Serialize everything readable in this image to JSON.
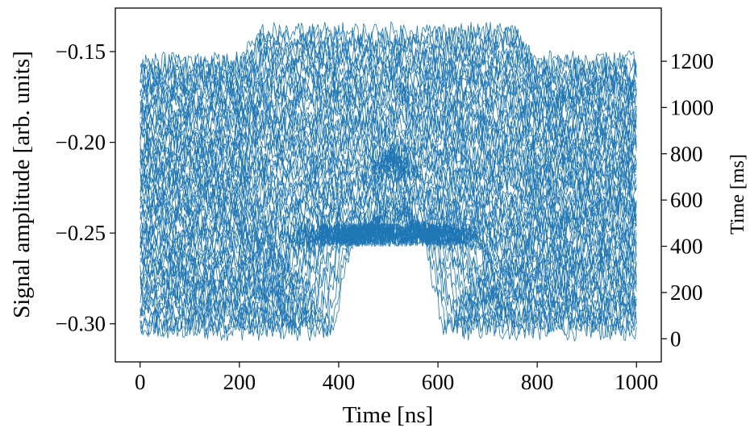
{
  "chart_data": {
    "type": "line",
    "title": "",
    "xlabel": "Time [ns]",
    "ylabel": "Signal amplitude [arb. units]",
    "y2label": "Time [ms]",
    "xlim": [
      -50,
      1050
    ],
    "ylim": [
      -0.321,
      -0.126
    ],
    "y2lim": [
      -100,
      1430
    ],
    "x_ticks": [
      0,
      200,
      400,
      600,
      800,
      1000
    ],
    "y_ticks": [
      -0.3,
      -0.25,
      -0.2,
      -0.15
    ],
    "y_tick_labels": [
      "−0.30",
      "−0.25",
      "−0.20",
      "−0.15"
    ],
    "y2_ticks": [
      0,
      200,
      400,
      600,
      800,
      1000,
      1200
    ],
    "grid": false,
    "legend": "none",
    "line_color": "#1f77b4",
    "series_description": "about 65 noisy traces sampled over 0-1000 ns; each trace holds a baseline near -0.30 (early traces) rising to about -0.155 (late traces); a plateau near -0.25 spans roughly 430-570 ns on the earliest trace and widens to the full 200-800 ns window by the latest traces, where it sits at about -0.14; mid-sequence traces show a transient peak near -0.228 around 510 ns",
    "series": [
      {
        "x": [
          0,
          200,
          380,
          430,
          570,
          620,
          800,
          1000
        ],
        "values": [
          -0.303,
          -0.303,
          -0.303,
          -0.25,
          -0.25,
          -0.303,
          -0.303,
          -0.303
        ]
      },
      {
        "x": [
          0,
          200,
          300,
          350,
          650,
          700,
          800,
          1000
        ],
        "values": [
          -0.28,
          -0.28,
          -0.28,
          -0.248,
          -0.248,
          -0.28,
          -0.28,
          -0.28
        ]
      },
      {
        "x": [
          0,
          200,
          260,
          500,
          740,
          800,
          1000
        ],
        "values": [
          -0.235,
          -0.235,
          -0.245,
          -0.228,
          -0.245,
          -0.235,
          -0.235
        ]
      },
      {
        "x": [
          0,
          200,
          250,
          750,
          800,
          1000
        ],
        "values": [
          -0.19,
          -0.19,
          -0.175,
          -0.175,
          -0.19,
          -0.19
        ]
      },
      {
        "x": [
          0,
          200,
          250,
          750,
          800,
          1000
        ],
        "values": [
          -0.155,
          -0.155,
          -0.14,
          -0.14,
          -0.155,
          -0.155
        ]
      }
    ]
  }
}
